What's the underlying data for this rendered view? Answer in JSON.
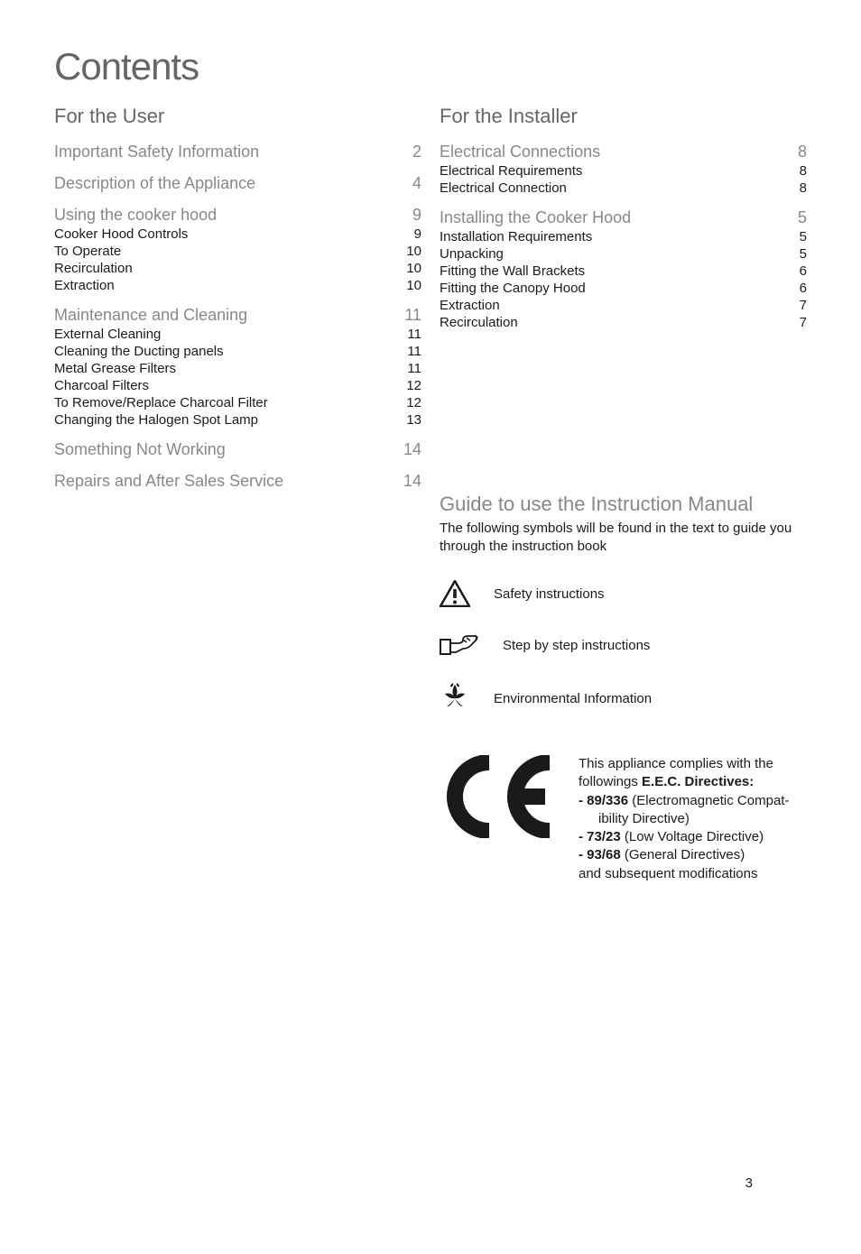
{
  "pageTitle": "Contents",
  "pageNumber": "3",
  "left": {
    "heading": "For the User",
    "groups": [
      {
        "major": null,
        "items": [
          {
            "label": "Important Safety Information",
            "page": "2",
            "major": true
          }
        ]
      },
      {
        "major": null,
        "items": [
          {
            "label": "Description of the Appliance",
            "page": "4",
            "major": true
          }
        ]
      },
      {
        "major": null,
        "items": [
          {
            "label": "Using the cooker hood",
            "page": "9",
            "major": true
          },
          {
            "label": "Cooker Hood Controls",
            "page": "9",
            "major": false
          },
          {
            "label": "To Operate",
            "page": "10",
            "major": false
          },
          {
            "label": "Recirculation",
            "page": "10",
            "major": false
          },
          {
            "label": "Extraction",
            "page": "10",
            "major": false
          }
        ]
      },
      {
        "major": null,
        "items": [
          {
            "label": "Maintenance and Cleaning",
            "page": "11",
            "major": true
          },
          {
            "label": "External Cleaning",
            "page": "11",
            "major": false
          },
          {
            "label": "Cleaning the Ducting panels",
            "page": "11",
            "major": false
          },
          {
            "label": "Metal Grease Filters",
            "page": "11",
            "major": false
          },
          {
            "label": "Charcoal Filters",
            "page": "12",
            "major": false
          },
          {
            "label": "To Remove/Replace Charcoal Filter",
            "page": "12",
            "major": false
          },
          {
            "label": "Changing the Halogen Spot Lamp",
            "page": "13",
            "major": false
          }
        ]
      },
      {
        "major": null,
        "items": [
          {
            "label": "Something Not Working",
            "page": "14",
            "major": true
          }
        ]
      },
      {
        "major": null,
        "items": [
          {
            "label": "Repairs and After Sales Service",
            "page": "14",
            "major": true
          }
        ]
      }
    ]
  },
  "right": {
    "heading": "For the Installer",
    "groups": [
      {
        "items": [
          {
            "label": "Electrical Connections",
            "page": "8",
            "major": true
          },
          {
            "label": "Electrical Requirements",
            "page": "8",
            "major": false
          },
          {
            "label": "Electrical Connection",
            "page": "8",
            "major": false
          }
        ]
      },
      {
        "items": [
          {
            "label": "Installing the Cooker Hood",
            "page": "5",
            "major": true
          },
          {
            "label": "Installation Requirements",
            "page": "5",
            "major": false
          },
          {
            "label": "Unpacking",
            "page": "5",
            "major": false
          },
          {
            "label": "Fitting the Wall Brackets",
            "page": "6",
            "major": false
          },
          {
            "label": "Fitting the Canopy Hood",
            "page": "6",
            "major": false
          },
          {
            "label": "Extraction",
            "page": "7",
            "major": false
          },
          {
            "label": "Recirculation",
            "page": "7",
            "major": false
          }
        ]
      }
    ]
  },
  "guide": {
    "heading": "Guide to use the Instruction Manual",
    "intro": "The following symbols will be found in the text to guide you through the instruction book",
    "symbols": [
      {
        "name": "warning-icon",
        "desc": "Safety instructions"
      },
      {
        "name": "hand-steps-icon",
        "desc": "Step by step instructions"
      },
      {
        "name": "leaf-icon",
        "desc": "Environmental Information"
      }
    ]
  },
  "ce": {
    "line1": "This appliance complies with the followings ",
    "bold": "E.E.C. Directives:",
    "bullets": [
      {
        "t1": "-  89/336",
        "t2": " (Electromagnetic Compat-",
        "cont": "ibility Directive)"
      },
      {
        "t1": "-  73/23",
        "t2": " (Low Voltage Directive)"
      },
      {
        "t1": "-  93/68",
        "t2": " (General Directives)"
      }
    ],
    "last": "and subsequent modifications"
  },
  "colors": {
    "text": "#1a1a1a",
    "muted": "#888888",
    "heading": "#666666",
    "bg": "#ffffff"
  }
}
